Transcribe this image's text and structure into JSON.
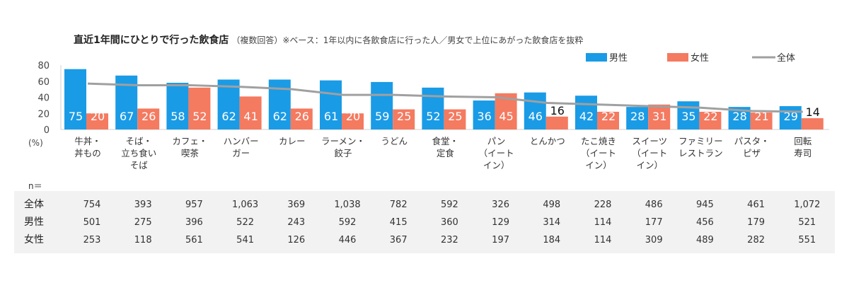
{
  "title": "直近1年間にひとりで行った飲食店",
  "subtitle": "（複数回答）※ベース：1年以内に各飲食店に行った人／男女で上位にあがった飲食店を抜粋",
  "chart_data": {
    "type": "bar",
    "title": "直近1年間にひとりで行った飲食店",
    "ylabel": "(%)",
    "ylim": [
      0,
      80
    ],
    "yticks": [
      0,
      20,
      40,
      60,
      80
    ],
    "grid": false,
    "legend": "top-right",
    "categories": [
      "牛丼・\n丼もの",
      "そば・\n立ち食い\nそば",
      "カフェ・\n喫茶",
      "ハンバー\nガー",
      "カレー",
      "ラーメン・\n餃子",
      "うどん",
      "食堂・\n定食",
      "パン\n（イート\nイン）",
      "とんかつ",
      "たこ焼き\n（イート\nイン）",
      "スイーツ\n（イート\nイン）",
      "ファミリー\nレストラン",
      "パスタ・\nピザ",
      "回転\n寿司"
    ],
    "series": [
      {
        "name": "男性",
        "type": "bar",
        "color": "#1a9be6",
        "values": [
          75,
          67,
          58,
          62,
          62,
          61,
          59,
          52,
          36,
          46,
          42,
          28,
          35,
          28,
          29
        ]
      },
      {
        "name": "女性",
        "type": "bar",
        "color": "#f47a60",
        "values": [
          20,
          26,
          52,
          41,
          26,
          20,
          25,
          25,
          45,
          16,
          22,
          31,
          22,
          21,
          14
        ]
      },
      {
        "name": "全体",
        "type": "line",
        "color": "#a0a0a0",
        "values": [
          57,
          55,
          55,
          53,
          50,
          43,
          43,
          41,
          40,
          33,
          31,
          29,
          27,
          23,
          22
        ]
      }
    ]
  },
  "table": {
    "n_label": "n＝",
    "rows": [
      {
        "label": "全体",
        "values": [
          "754",
          "393",
          "957",
          "1,063",
          "369",
          "1,038",
          "782",
          "592",
          "326",
          "498",
          "228",
          "486",
          "945",
          "461",
          "1,072"
        ]
      },
      {
        "label": "男性",
        "values": [
          "501",
          "275",
          "396",
          "522",
          "243",
          "592",
          "415",
          "360",
          "129",
          "314",
          "114",
          "177",
          "456",
          "179",
          "521"
        ]
      },
      {
        "label": "女性",
        "values": [
          "253",
          "118",
          "561",
          "541",
          "126",
          "446",
          "367",
          "232",
          "197",
          "184",
          "114",
          "309",
          "489",
          "282",
          "551"
        ]
      }
    ]
  }
}
